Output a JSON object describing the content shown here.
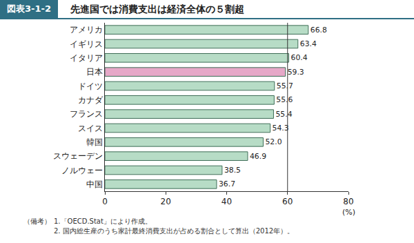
{
  "chart_data": {
    "type": "bar",
    "orientation": "horizontal",
    "figure_label": "図表3-1-2",
    "title": "先進国では消費支出は経済全体の５割超",
    "categories": [
      "アメリカ",
      "イギリス",
      "イタリア",
      "日本",
      "ドイツ",
      "カナダ",
      "フランス",
      "スイス",
      "韓国",
      "スウェーデン",
      "ノルウェー",
      "中国"
    ],
    "values": [
      66.8,
      63.4,
      60.4,
      59.3,
      55.7,
      55.6,
      55.4,
      54.3,
      52.0,
      46.9,
      38.5,
      36.7
    ],
    "value_labels": [
      "66.8",
      "63.4",
      "60.4",
      "59.3",
      "55.7",
      "55.6",
      "55.4",
      "54.3",
      "52.0",
      "46.9",
      "38.5",
      "36.7"
    ],
    "colors": [
      "#b7dcc6",
      "#b7dcc6",
      "#b7dcc6",
      "#e6a8c8",
      "#b7dcc6",
      "#b7dcc6",
      "#b7dcc6",
      "#b7dcc6",
      "#b7dcc6",
      "#b7dcc6",
      "#b7dcc6",
      "#b7dcc6"
    ],
    "data_labels": true,
    "xlim": [
      0,
      80
    ],
    "xticks": [
      0,
      20,
      40,
      60,
      80
    ],
    "xlabel": "(%)",
    "reference_line": {
      "x": 60
    },
    "grid": false,
    "notes_label": "（備考）",
    "notes": [
      "1.「OECD.Stat」により作成。",
      "2. 国内総生産のうち家計最終消費支出が占める割合として算出（2012年）。"
    ]
  }
}
